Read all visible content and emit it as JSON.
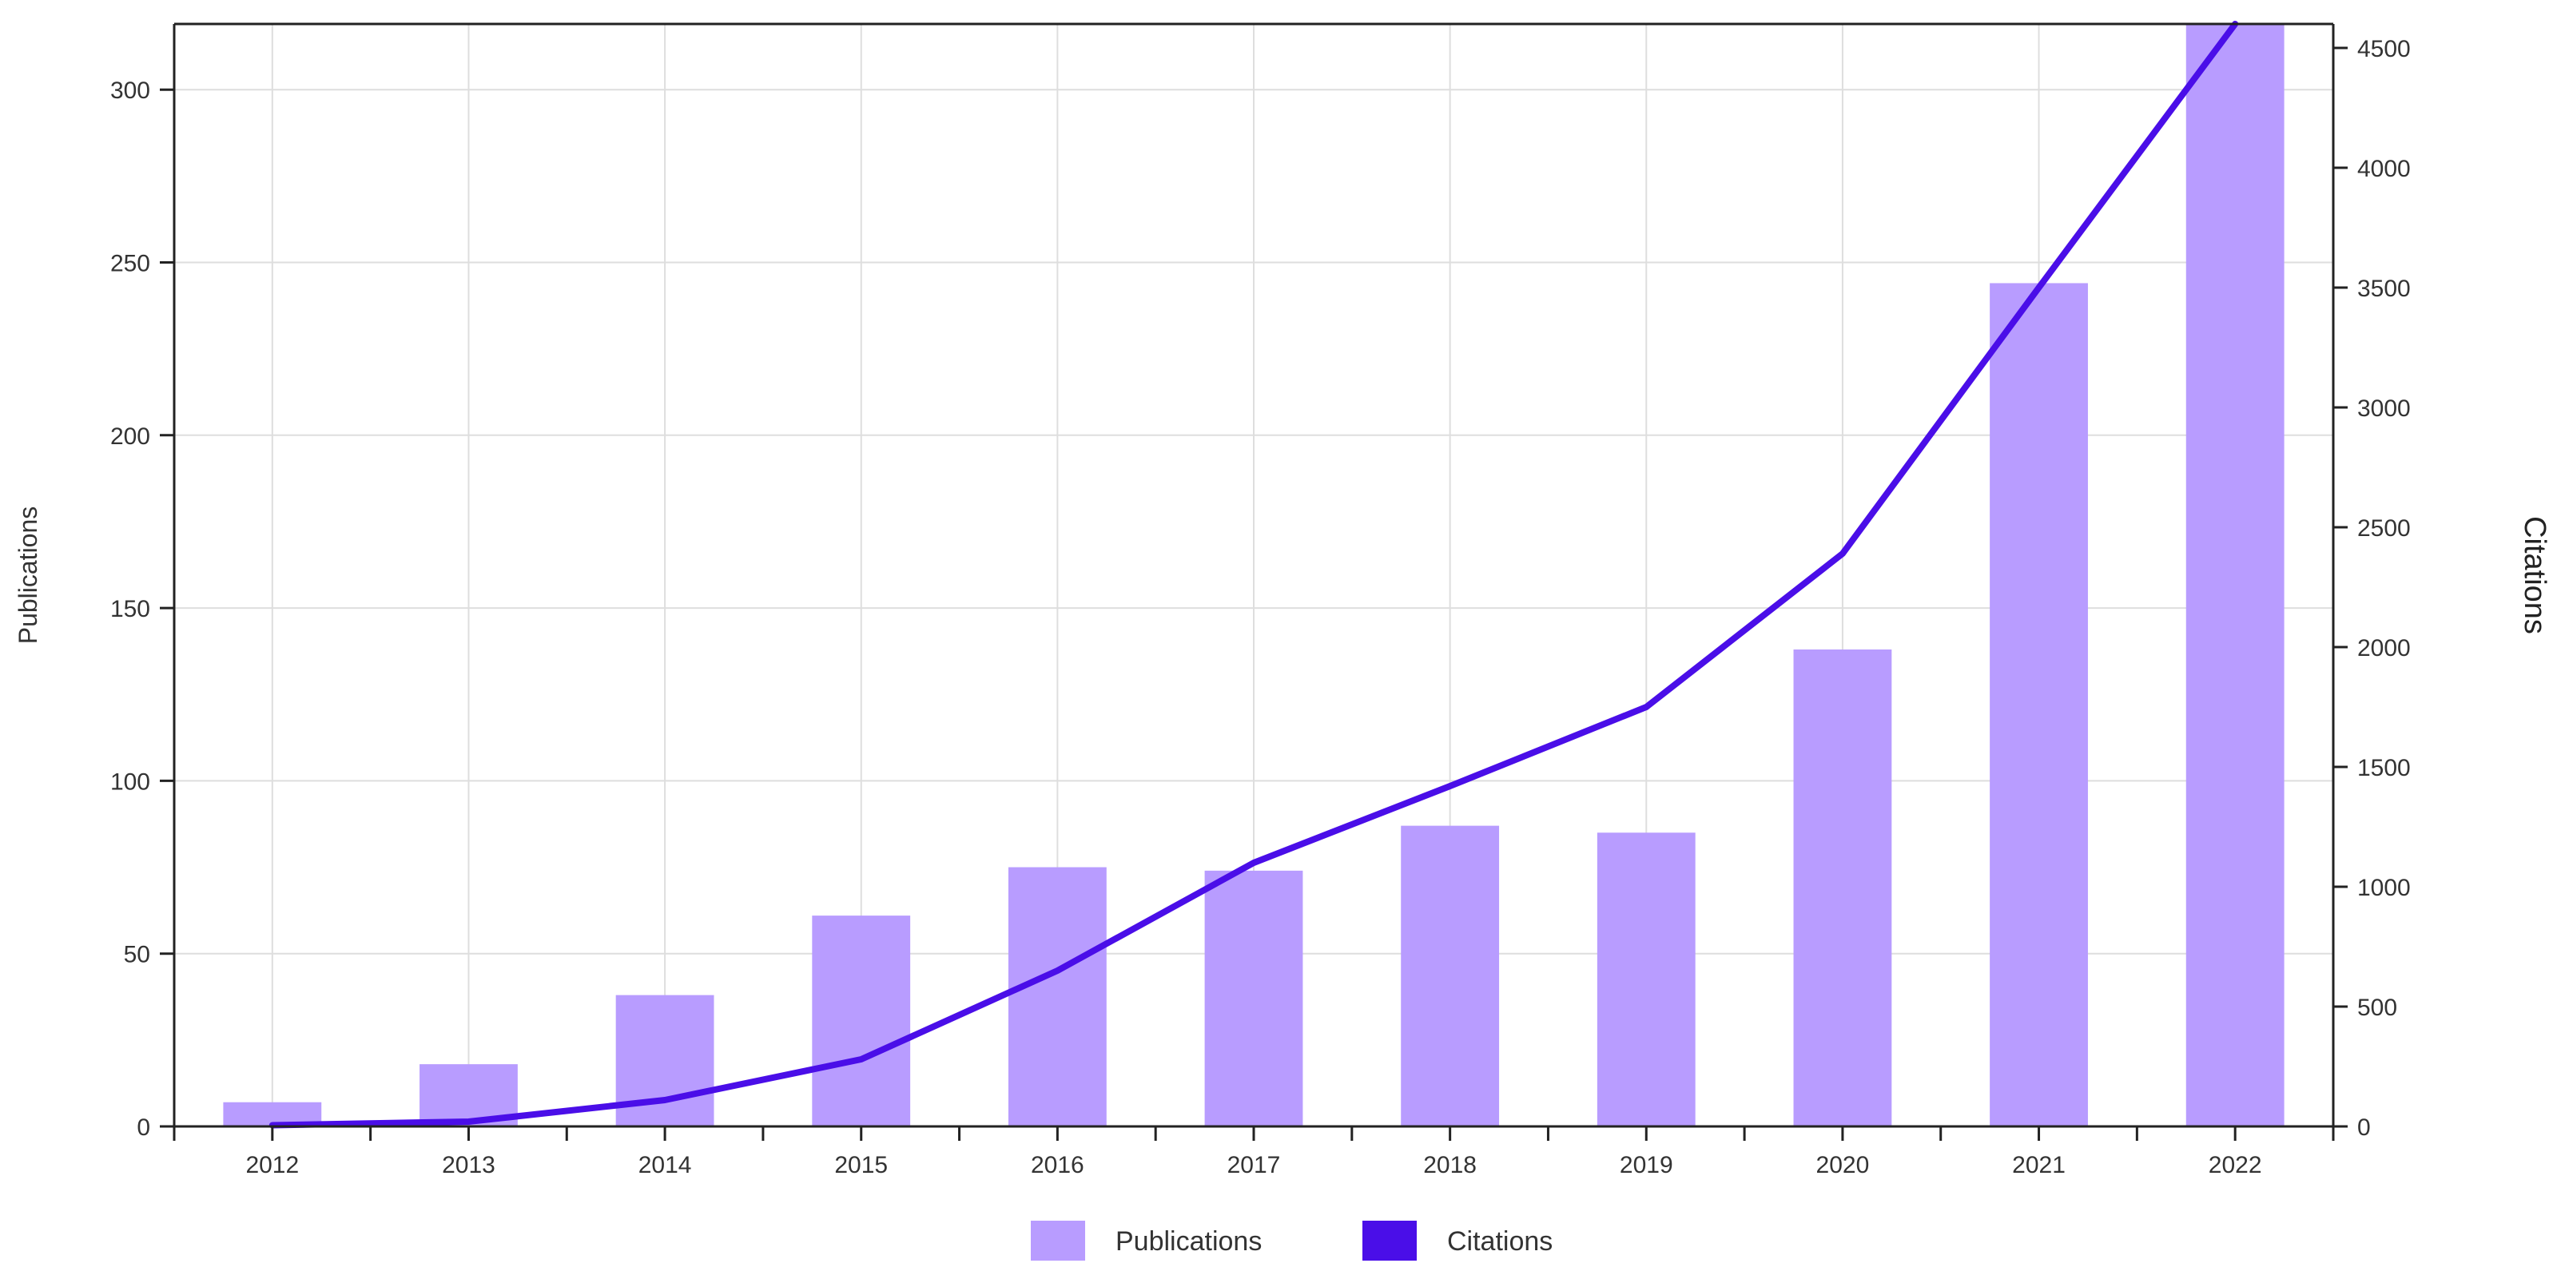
{
  "chart_data": {
    "type": "bar",
    "categories": [
      "2012",
      "2013",
      "2014",
      "2015",
      "2016",
      "2017",
      "2018",
      "2019",
      "2020",
      "2021",
      "2022"
    ],
    "series": [
      {
        "name": "Publications",
        "type": "bar",
        "axis": "left",
        "color": "#b89cff",
        "values": [
          7,
          18,
          38,
          61,
          75,
          74,
          87,
          85,
          138,
          244,
          319
        ]
      },
      {
        "name": "Citations",
        "type": "line",
        "axis": "right",
        "color": "#4a0ee8",
        "values": [
          5,
          20,
          110,
          280,
          650,
          1100,
          1420,
          1750,
          2390,
          3500,
          4600
        ]
      }
    ],
    "ylabel": "Publications",
    "y2label": "Citations",
    "ylim": [
      0,
      319
    ],
    "y2lim": [
      0,
      4600
    ],
    "yticks": [
      0,
      50,
      100,
      150,
      200,
      250,
      300
    ],
    "y2ticks": [
      0,
      500,
      1000,
      1500,
      2000,
      2500,
      3000,
      3500,
      4000,
      4500
    ],
    "grid": true,
    "legend": "bottom-center"
  }
}
